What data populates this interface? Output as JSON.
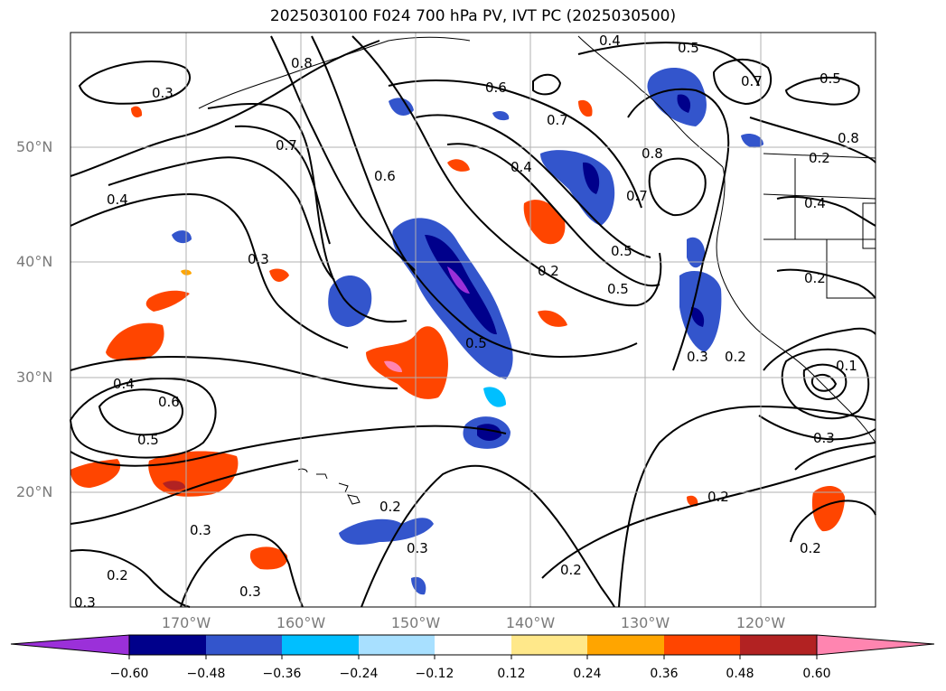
{
  "title": "2025030100 F024 700 hPa PV, IVT PC (2025030500)",
  "lat_labels": [
    "50°N",
    "40°N",
    "30°N",
    "20°N"
  ],
  "lon_labels": [
    "170°W",
    "160°W",
    "150°W",
    "140°W",
    "130°W",
    "120°W"
  ],
  "contour_labels": [
    "0.3",
    "0.8",
    "0.4",
    "0.5",
    "0.6",
    "0.7",
    "0.4",
    "0.3",
    "0.7",
    "0.6",
    "0.4",
    "0.2",
    "0.5",
    "0.8",
    "0.7",
    "0.5",
    "0.4",
    "0.2",
    "0.3",
    "0.5",
    "0.2",
    "0.4",
    "0.6",
    "0.5",
    "0.2",
    "0.3",
    "0.2",
    "0.3",
    "0.2",
    "0.3",
    "0.2",
    "0.2",
    "0.8",
    "0.7",
    "0.5",
    "0.1",
    "0.3",
    "0.2",
    "0.3"
  ],
  "colorbar": {
    "ticks": [
      "−0.60",
      "−0.48",
      "−0.36",
      "−0.24",
      "−0.12",
      "0.12",
      "0.24",
      "0.36",
      "0.48",
      "0.60"
    ],
    "colors": [
      "#9b30d9",
      "#00008b",
      "#3355cc",
      "#00bfff",
      "#a8e0ff",
      "#ffffff",
      "#ffe88a",
      "#ffa500",
      "#ff4500",
      "#b22222",
      "#ff85b0"
    ]
  }
}
